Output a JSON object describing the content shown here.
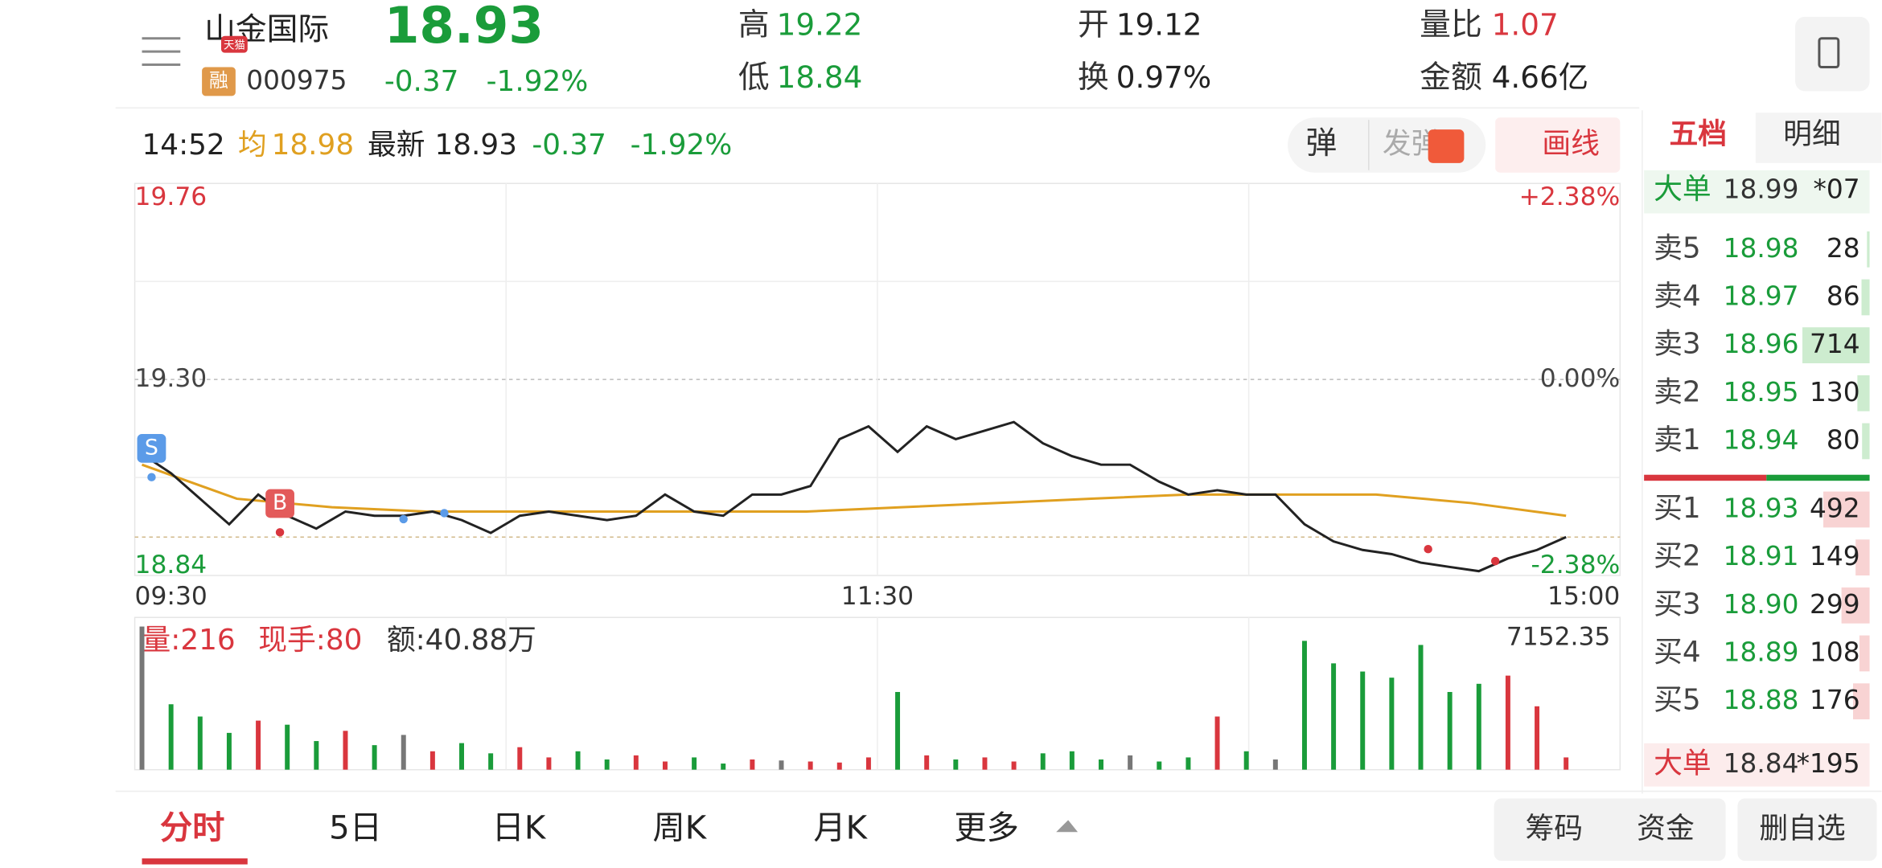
{
  "header": {
    "name": "山金国际",
    "badge": "天猫",
    "margin_tag": "融",
    "code": "000975",
    "price": "18.93",
    "change": "-0.37",
    "change_pct": "-1.92%",
    "stats": [
      {
        "label": "高",
        "value": "19.22",
        "color": "#1a9c3a"
      },
      {
        "label": "低",
        "value": "18.84",
        "color": "#1a9c3a"
      },
      {
        "label": "开",
        "value": "19.12",
        "color": "#222"
      },
      {
        "label": "换",
        "value": "0.97%",
        "color": "#222"
      },
      {
        "label": "量比",
        "value": "1.07",
        "color": "#d9363e"
      },
      {
        "label": "金额",
        "value": "4.66亿",
        "color": "#222"
      }
    ]
  },
  "info_bar": {
    "time": "14:52",
    "avg": "18.98",
    "latest": "18.93",
    "change": "-0.37",
    "change_pct": "-1.92%"
  },
  "buttons": {
    "danmu": "弹",
    "send_danmu": "发弹",
    "draw": "画线"
  },
  "chart_data": {
    "type": "line",
    "ylim": [
      18.84,
      19.76
    ],
    "yticks": [
      {
        "value": 18.84,
        "label": "18.84"
      },
      {
        "value": 19.3,
        "label": "19.30"
      },
      19.76
    ],
    "y2lim": [
      -2.38,
      2.38
    ],
    "y2ticks": [
      {
        "value": -2.38,
        "label": "-2.38%"
      },
      {
        "value": 0,
        "label": "0.00%"
      },
      {
        "value": 2.38,
        "label": "+2.38%"
      }
    ],
    "xticks": [
      "09:30",
      "11:30",
      "15:00"
    ],
    "annotations": [
      "S",
      "B"
    ],
    "series": [
      {
        "name": "最新",
        "color": "#222222",
        "values": [
          19.125,
          19.08,
          19.02,
          18.96,
          19.03,
          18.98,
          18.95,
          18.99,
          18.98,
          18.98,
          18.99,
          18.97,
          18.94,
          18.98,
          18.99,
          18.98,
          18.97,
          18.98,
          19.03,
          18.99,
          18.98,
          19.03,
          19.03,
          19.05,
          19.16,
          19.19,
          19.13,
          19.19,
          19.16,
          19.18,
          19.2,
          19.15,
          19.12,
          19.1,
          19.1,
          19.06,
          19.03,
          19.04,
          19.03,
          19.03,
          18.96,
          18.92,
          18.9,
          18.89,
          18.87,
          18.86,
          18.85,
          18.88,
          18.9,
          18.93
        ]
      },
      {
        "name": "均",
        "color": "#e0a020",
        "values": [
          19.1,
          19.02,
          19.0,
          18.99,
          18.99,
          18.99,
          18.99,
          18.99,
          19.0,
          19.01,
          19.02,
          19.03,
          19.03,
          19.03,
          19.01,
          18.98
        ]
      }
    ]
  },
  "volume": {
    "label": "量:216",
    "hand": "现手:80",
    "amount": "额:40.88万",
    "max": 7152.35,
    "values": [
      7000,
      3200,
      2600,
      1800,
      2400,
      2200,
      1400,
      1900,
      1200,
      1700,
      900,
      1300,
      800,
      1100,
      600,
      900,
      500,
      700,
      400,
      600,
      300,
      500,
      450,
      400,
      350,
      600,
      3800,
      700,
      500,
      600,
      400,
      800,
      900,
      500,
      700,
      400,
      600,
      2600,
      900,
      500,
      6300,
      5200,
      4800,
      4500,
      6100,
      3800,
      4200,
      4600,
      3100,
      600
    ]
  },
  "order_book": {
    "tabs": [
      "五档",
      "明细"
    ],
    "big_top": {
      "label": "大单",
      "price": "18.99",
      "vol": "*07"
    },
    "sell": [
      {
        "label": "卖5",
        "price": "18.98",
        "vol": 28
      },
      {
        "label": "卖4",
        "price": "18.97",
        "vol": 86
      },
      {
        "label": "卖3",
        "price": "18.96",
        "vol": 714
      },
      {
        "label": "卖2",
        "price": "18.95",
        "vol": 130
      },
      {
        "label": "卖1",
        "price": "18.94",
        "vol": 80
      }
    ],
    "buy": [
      {
        "label": "买1",
        "price": "18.93",
        "vol": 492
      },
      {
        "label": "买2",
        "price": "18.91",
        "vol": 149
      },
      {
        "label": "买3",
        "price": "18.90",
        "vol": 299
      },
      {
        "label": "买4",
        "price": "18.89",
        "vol": 108
      },
      {
        "label": "买5",
        "price": "18.88",
        "vol": 176
      }
    ],
    "big_bottom": {
      "label": "大单",
      "price": "18.84",
      "vol": "*195"
    }
  },
  "tabs": [
    "分时",
    "5日",
    "日K",
    "周K",
    "月K",
    "更多"
  ],
  "actions": [
    "筹码",
    "资金",
    "删自选"
  ]
}
